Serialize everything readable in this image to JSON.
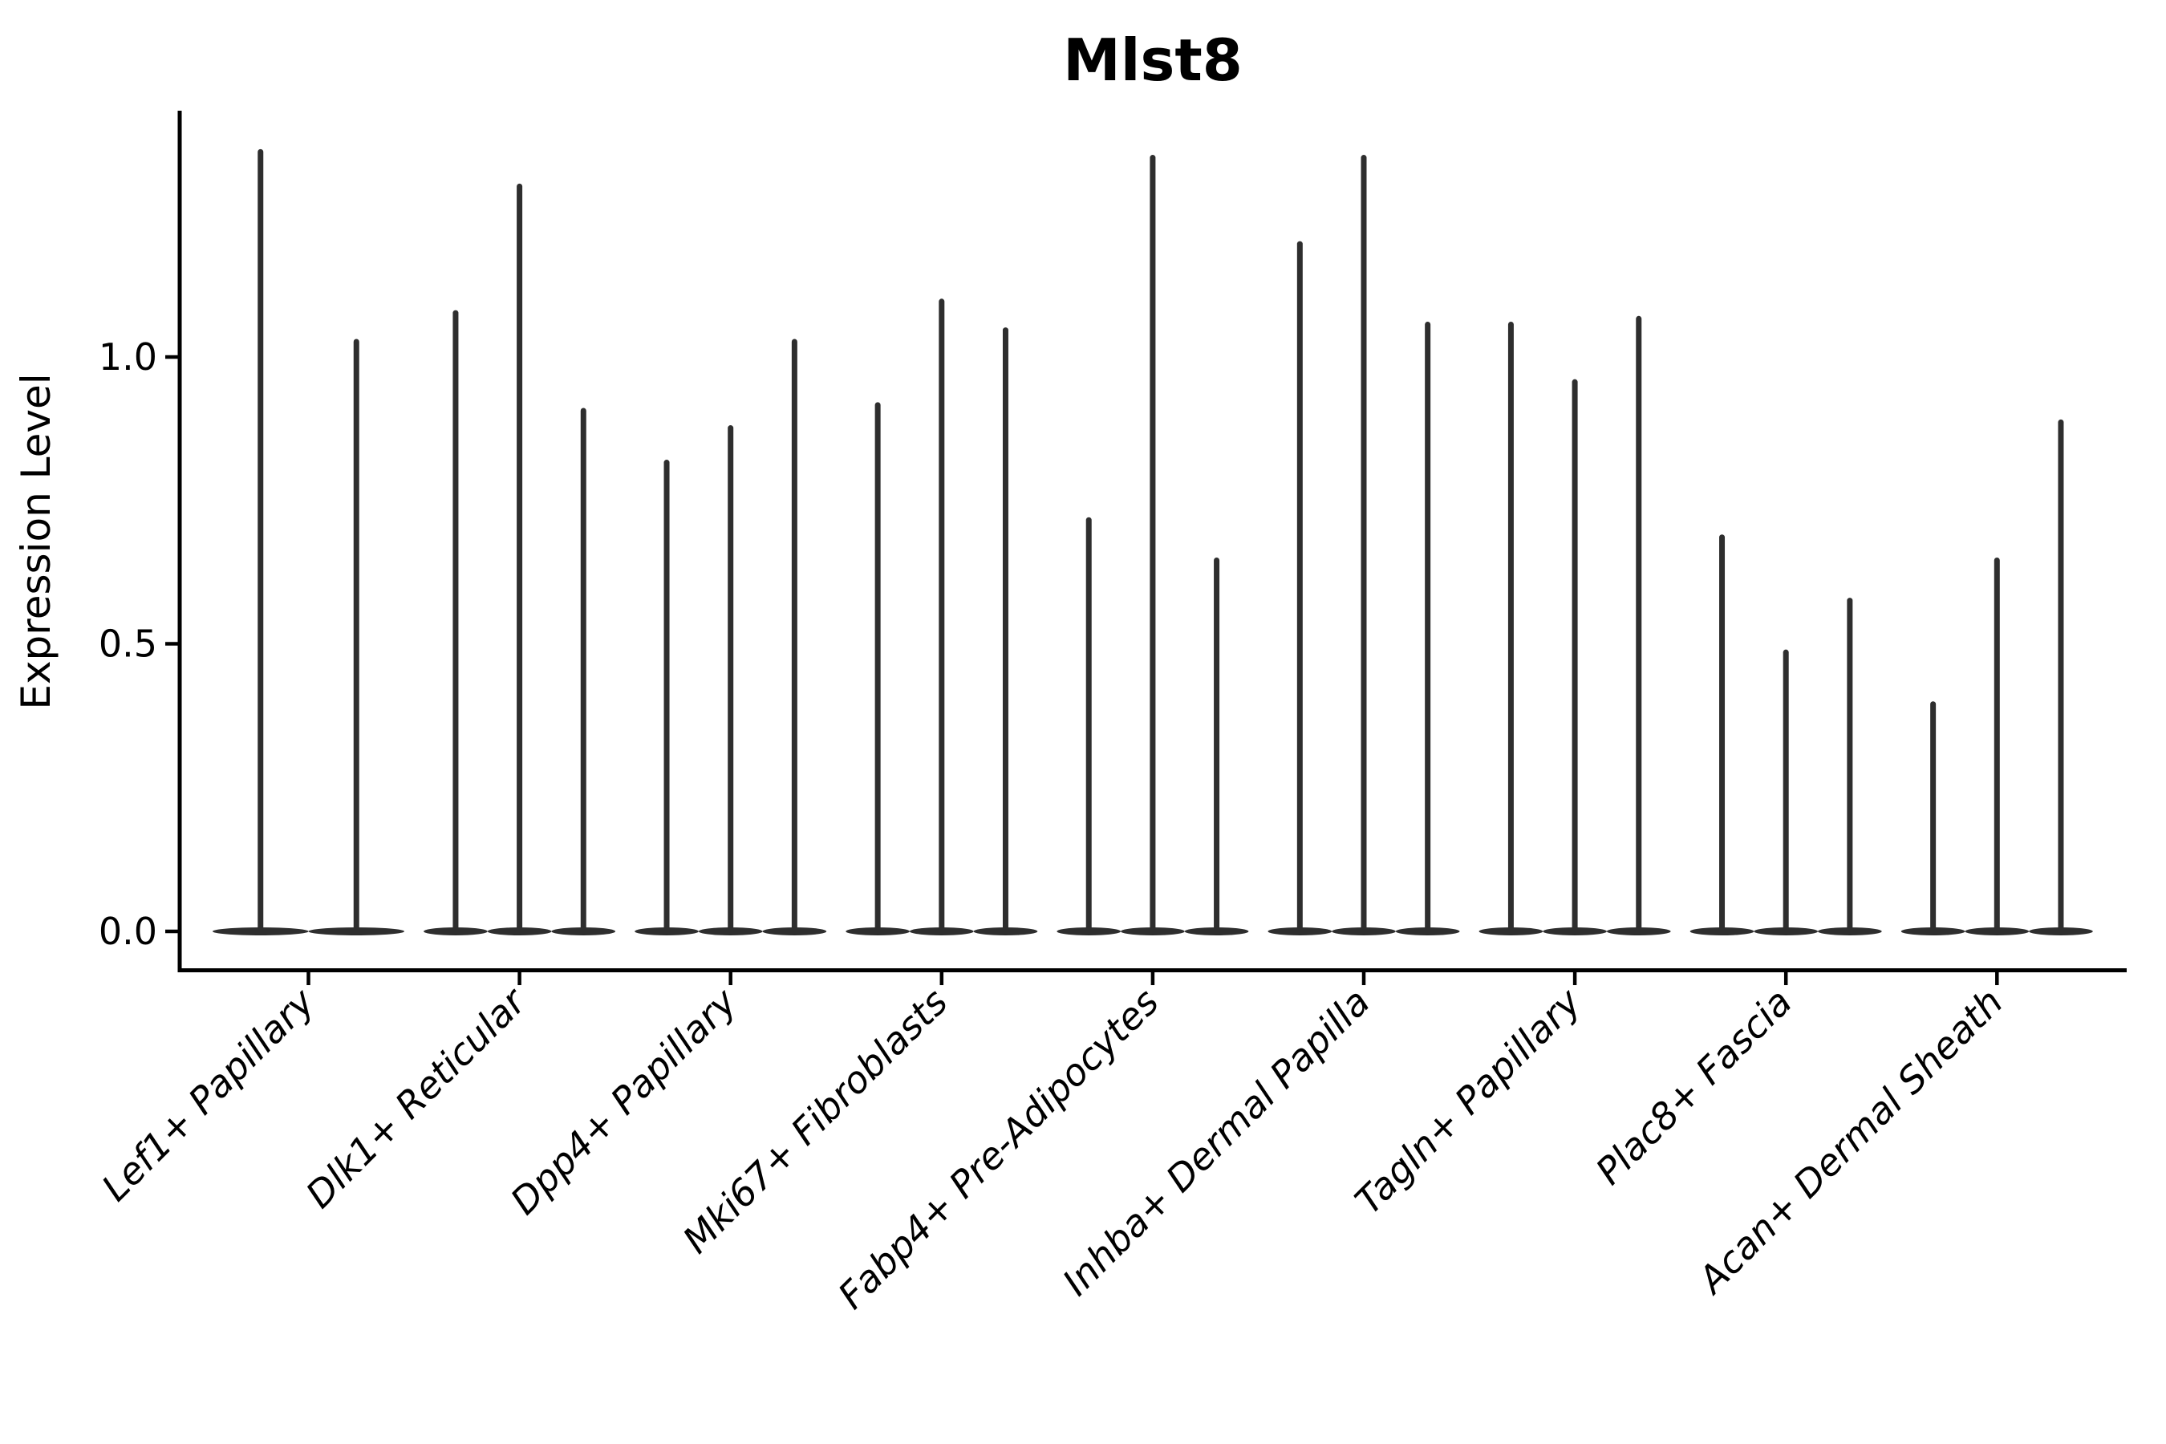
{
  "title": "Mlst8",
  "y_axis": {
    "label": "Expression Level"
  },
  "colors": {
    "violin": "#2e2e2e",
    "axis": "#000000",
    "text": "#000000",
    "background": "#ffffff"
  },
  "chart_data": {
    "type": "violin",
    "title": "Mlst8",
    "xlabel": "",
    "ylabel": "Expression Level",
    "ylim": [
      -0.07,
      1.43
    ],
    "yticks": [
      0.0,
      0.5,
      1.0
    ],
    "ytick_labels": [
      "0.0",
      "0.5",
      "1.0"
    ],
    "grid": false,
    "legend": "none",
    "note": "Needle-shaped violins: dense mass at 0 expression with thin spike up to the max expression value; 2-3 violins (samples) per cell-type group",
    "categories": [
      "Lef1+ Papillary",
      "Dlk1+ Reticular",
      "Dpp4+ Papillary",
      "Mki67+ Fibroblasts",
      "Fabp4+ Pre-Adipocytes",
      "Inhba+ Dermal Papilla",
      "Tagln+ Papillary",
      "Plac8+ Fascia",
      "Acan+ Dermal Sheath"
    ],
    "series": [
      {
        "category": "Lef1+ Papillary",
        "max_expression": [
          1.36,
          1.03
        ]
      },
      {
        "category": "Dlk1+ Reticular",
        "max_expression": [
          1.08,
          1.3,
          0.91
        ]
      },
      {
        "category": "Dpp4+ Papillary",
        "max_expression": [
          0.82,
          0.88,
          1.03
        ]
      },
      {
        "category": "Mki67+ Fibroblasts",
        "max_expression": [
          0.92,
          1.1,
          1.05
        ]
      },
      {
        "category": "Fabp4+ Pre-Adipocytes",
        "max_expression": [
          0.72,
          1.35,
          0.65
        ]
      },
      {
        "category": "Inhba+ Dermal Papilla",
        "max_expression": [
          1.2,
          1.35,
          1.06
        ]
      },
      {
        "category": "Tagln+ Papillary",
        "max_expression": [
          1.06,
          0.96,
          1.07
        ]
      },
      {
        "category": "Plac8+ Fascia",
        "max_expression": [
          0.69,
          0.49,
          0.58
        ]
      },
      {
        "category": "Acan+ Dermal Sheath",
        "max_expression": [
          0.4,
          0.65,
          0.89
        ]
      }
    ]
  }
}
